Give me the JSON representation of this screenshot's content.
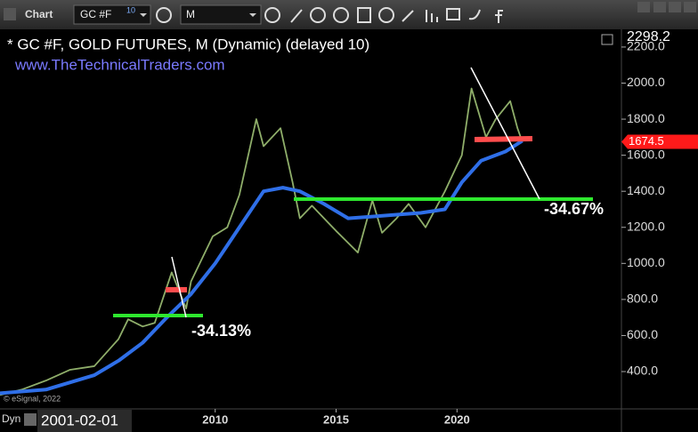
{
  "toolbar": {
    "title": "Chart",
    "symbol": "GC #F",
    "symbol_badge": "10",
    "interval": "M"
  },
  "chart_data": {
    "type": "line",
    "title": "* GC #F, GOLD FUTURES, M (Dynamic) (delayed 10)",
    "subtitle": "www.TheTechnicalTraders.com",
    "series": [
      {
        "color": "#8fae6a",
        "x": [
          2001.1,
          2002,
          2003,
          2004,
          2005,
          2006,
          2006.4,
          2007,
          2007.5,
          2008.2,
          2008.8,
          2009,
          2009.9,
          2010.5,
          2011,
          2011.7,
          2012,
          2012.7,
          2013.2,
          2013.5,
          2014,
          2015,
          2015.9,
          2016.5,
          2016.9,
          2017.5,
          2018,
          2018.7,
          2019.5,
          2020.2,
          2020.6,
          2021.2,
          2021.6,
          2022.2,
          2022.5,
          2022.7
        ],
        "values": [
          270,
          300,
          350,
          410,
          430,
          580,
          690,
          650,
          670,
          950,
          750,
          900,
          1150,
          1200,
          1380,
          1800,
          1650,
          1750,
          1450,
          1250,
          1320,
          1180,
          1060,
          1350,
          1170,
          1250,
          1330,
          1200,
          1400,
          1600,
          1970,
          1700,
          1800,
          1900,
          1750,
          1674.5
        ]
      },
      {
        "color": "#2f6fe8",
        "x": [
          2001.1,
          2003,
          2005,
          2006,
          2007,
          2008,
          2009,
          2010,
          2011,
          2012,
          2012.8,
          2013.5,
          2014.5,
          2015.5,
          2016.5,
          2017.5,
          2018.5,
          2019.5,
          2020.2,
          2021,
          2022,
          2022.7
        ],
        "values": [
          280,
          300,
          380,
          460,
          560,
          700,
          830,
          1000,
          1200,
          1400,
          1420,
          1400,
          1330,
          1250,
          1260,
          1270,
          1280,
          1300,
          1450,
          1570,
          1620,
          1680
        ]
      }
    ],
    "xlim": [
      2001.1,
      2026.8
    ],
    "xticks": [
      2010,
      2015,
      2020
    ],
    "ylim": [
      193,
      2298.2
    ],
    "yticks": [
      {
        "value": 400,
        "label": "400.0"
      },
      {
        "value": 600,
        "label": "600.0"
      },
      {
        "value": 800,
        "label": "800.0"
      },
      {
        "value": 1000,
        "label": "1000.0"
      },
      {
        "value": 1200,
        "label": "1200.0"
      },
      {
        "value": 1400,
        "label": "1400.0"
      },
      {
        "value": 1600,
        "label": "1600.0"
      },
      {
        "value": 1800,
        "label": "1800.0"
      },
      {
        "value": 2000,
        "label": "2000.0"
      },
      {
        "value": 2200,
        "label": "2200.0"
      }
    ],
    "top_price": "2298.2",
    "last_price": 1674.5,
    "annotations": [
      "-34.13%",
      "-34.67%"
    ],
    "copyright": "© eSignal, 2022"
  },
  "footer": {
    "mode": "Dyn",
    "start_date": "2001-02-01"
  }
}
